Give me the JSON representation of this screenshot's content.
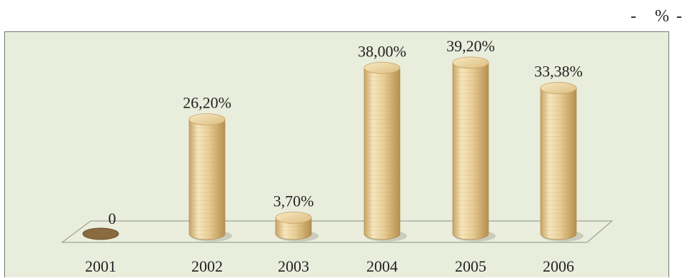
{
  "unit_label": "-   % -",
  "colors": {
    "background": "#e9eddc",
    "cylinder_light": "#f3dfae",
    "cylinder_mid": "#e3c68a",
    "cylinder_dark": "#b7924f",
    "zero_disc": "#8a6a3f",
    "floor": "#ebeedd"
  },
  "chart_data": {
    "type": "bar",
    "style": "3d-cylinder",
    "categories": [
      "2001",
      "2002",
      "2003",
      "2004",
      "2005",
      "2006"
    ],
    "values": [
      0,
      26.2,
      3.7,
      38.0,
      39.2,
      33.38
    ],
    "data_labels": [
      "0",
      "26,20%",
      "3,70%",
      "38,00%",
      "39,20%",
      "33,38%"
    ],
    "title": "",
    "xlabel": "",
    "ylabel": "",
    "ylim": [
      0,
      40
    ],
    "grid": false,
    "legend": false
  }
}
